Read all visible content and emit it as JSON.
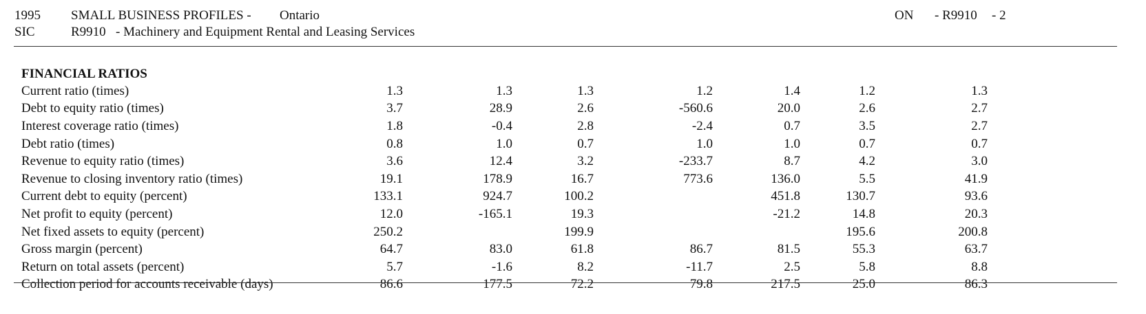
{
  "header": {
    "year": "1995",
    "title": "SMALL BUSINESS PROFILES -",
    "region": "Ontario",
    "page_code": {
      "province": "ON",
      "code": "- R9910",
      "page": "- 2"
    },
    "sic_label": "SIC",
    "sic_code": "R9910",
    "sic_description": "- Machinery and Equipment Rental and Leasing Services"
  },
  "section": {
    "title": "FINANCIAL RATIOS"
  },
  "rows": [
    {
      "label": "Current ratio (times)",
      "values": [
        "1.3",
        "1.3",
        "1.3",
        "1.2",
        "1.4",
        "1.2",
        "1.3"
      ]
    },
    {
      "label": "Debt to equity ratio (times)",
      "values": [
        "3.7",
        "28.9",
        "2.6",
        "-560.6",
        "20.0",
        "2.6",
        "2.7"
      ]
    },
    {
      "label": "Interest coverage ratio (times)",
      "values": [
        "1.8",
        "-0.4",
        "2.8",
        "-2.4",
        "0.7",
        "3.5",
        "2.7"
      ]
    },
    {
      "label": "Debt ratio (times)",
      "values": [
        "0.8",
        "1.0",
        "0.7",
        "1.0",
        "1.0",
        "0.7",
        "0.7"
      ]
    },
    {
      "label": "Revenue to equity ratio (times)",
      "values": [
        "3.6",
        "12.4",
        "3.2",
        "-233.7",
        "8.7",
        "4.2",
        "3.0"
      ]
    },
    {
      "label": "Revenue to closing inventory ratio (times)",
      "values": [
        "19.1",
        "178.9",
        "16.7",
        "773.6",
        "136.0",
        "5.5",
        "41.9"
      ]
    },
    {
      "label": "Current debt to equity (percent)",
      "values": [
        "133.1",
        "924.7",
        "100.2",
        "",
        "451.8",
        "130.7",
        "93.6"
      ]
    },
    {
      "label": "Net profit to equity (percent)",
      "values": [
        "12.0",
        "-165.1",
        "19.3",
        "",
        "-21.2",
        "14.8",
        "20.3"
      ]
    },
    {
      "label": "Net fixed assets to equity (percent)",
      "values": [
        "250.2",
        "",
        "199.9",
        "",
        "",
        "195.6",
        "200.8"
      ]
    },
    {
      "label": "Gross margin (percent)",
      "values": [
        "64.7",
        "83.0",
        "61.8",
        "86.7",
        "81.5",
        "55.3",
        "63.7"
      ]
    },
    {
      "label": "Return on total assets (percent)",
      "values": [
        "5.7",
        "-1.6",
        "8.2",
        "-11.7",
        "2.5",
        "5.8",
        "8.8"
      ]
    },
    {
      "label": "Collection period for accounts receivable (days)",
      "values": [
        "86.6",
        "177.5",
        "72.2",
        "79.8",
        "217.5",
        "25.0",
        "86.3"
      ]
    }
  ]
}
